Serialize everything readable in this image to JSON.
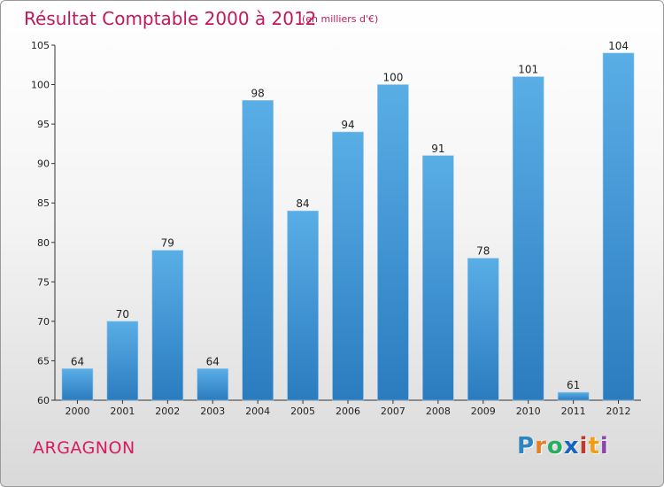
{
  "chart_data": {
    "type": "bar",
    "title": "Résultat Comptable 2000 à 2012",
    "subtitle": "(en milliers d'€)",
    "categories": [
      "2000",
      "2001",
      "2002",
      "2003",
      "2004",
      "2005",
      "2006",
      "2007",
      "2008",
      "2009",
      "2010",
      "2011",
      "2012"
    ],
    "values": [
      64,
      70,
      79,
      64,
      98,
      84,
      94,
      100,
      91,
      78,
      101,
      61,
      104
    ],
    "ylim": [
      60,
      105
    ],
    "yticks": [
      60,
      65,
      70,
      75,
      80,
      85,
      90,
      95,
      100,
      105
    ],
    "xlabel": "",
    "ylabel": "",
    "grid": false,
    "colors": {
      "bar_top": "#5aaee6",
      "bar_bottom": "#2a7cbf"
    }
  },
  "commune": "ARGAGNON",
  "logo": {
    "text": "Proxiti",
    "letters": [
      "P",
      "r",
      "o",
      "x",
      "i",
      "t",
      "i"
    ],
    "colors": [
      "#2e86c1",
      "#e67e22",
      "#27ae60",
      "#1565c0",
      "#c0392b",
      "#f39c12",
      "#8e44ad"
    ]
  }
}
